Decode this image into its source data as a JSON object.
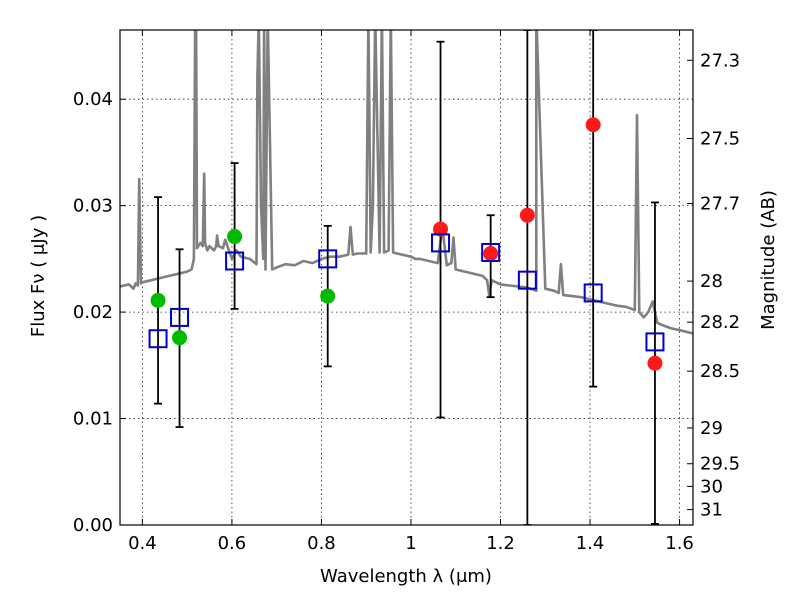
{
  "chart_data": {
    "type": "scatter",
    "title": "",
    "xlabel": "Wavelength  λ (μm)",
    "ylabel": "Flux  Fν  ( μJy )",
    "y2label": "Magnitude (AB)",
    "xlim": [
      0.35,
      1.63
    ],
    "ylim": [
      0.0,
      0.0465
    ],
    "grid": true,
    "legend": "none",
    "x_ticks": [
      {
        "value": 0.4,
        "label": "0.4"
      },
      {
        "value": 0.6,
        "label": "0.6"
      },
      {
        "value": 0.8,
        "label": "0.8"
      },
      {
        "value": 1.0,
        "label": "1"
      },
      {
        "value": 1.2,
        "label": "1.2"
      },
      {
        "value": 1.4,
        "label": "1.4"
      },
      {
        "value": 1.6,
        "label": "1.6"
      }
    ],
    "y_ticks": [
      {
        "value": 0.0,
        "label": "0.00"
      },
      {
        "value": 0.01,
        "label": "0.01"
      },
      {
        "value": 0.02,
        "label": "0.02"
      },
      {
        "value": 0.03,
        "label": "0.03"
      },
      {
        "value": 0.04,
        "label": "0.04"
      }
    ],
    "y2_ticks": [
      {
        "label": "27.3",
        "mag": 27.3
      },
      {
        "label": "27.5",
        "mag": 27.5
      },
      {
        "label": "27.7",
        "mag": 27.7
      },
      {
        "label": "28",
        "mag": 28.0
      },
      {
        "label": "28.2",
        "mag": 28.2
      },
      {
        "label": "28.5",
        "mag": 28.5
      },
      {
        "label": "29",
        "mag": 29.0
      },
      {
        "label": "29.5",
        "mag": 29.5
      },
      {
        "label": "30",
        "mag": 30.0
      },
      {
        "label": "31",
        "mag": 31.0
      }
    ],
    "series": [
      {
        "style": "model-spectrum",
        "color": "#808080",
        "x": [
          0.35,
          0.37,
          0.38,
          0.385,
          0.39,
          0.393,
          0.397,
          0.4,
          0.42,
          0.44,
          0.46,
          0.48,
          0.5,
          0.51,
          0.515,
          0.518,
          0.52,
          0.522,
          0.525,
          0.53,
          0.535,
          0.538,
          0.54,
          0.542,
          0.545,
          0.55,
          0.56,
          0.565,
          0.567,
          0.57,
          0.58,
          0.585,
          0.59,
          0.6,
          0.61,
          0.62,
          0.64,
          0.655,
          0.657,
          0.66,
          0.665,
          0.67,
          0.672,
          0.675,
          0.68,
          0.69,
          0.7,
          0.72,
          0.74,
          0.76,
          0.78,
          0.8,
          0.82,
          0.84,
          0.86,
          0.865,
          0.87,
          0.88,
          0.9,
          0.905,
          0.91,
          0.915,
          0.92,
          0.93,
          0.935,
          0.94,
          0.95,
          0.955,
          0.96,
          0.98,
          1.0,
          1.01,
          1.02,
          1.04,
          1.06,
          1.07,
          1.08,
          1.09,
          1.095,
          1.1,
          1.12,
          1.14,
          1.16,
          1.17,
          1.175,
          1.18,
          1.19,
          1.2,
          1.22,
          1.24,
          1.26,
          1.28,
          1.28,
          1.3,
          1.32,
          1.33,
          1.335,
          1.34,
          1.36,
          1.38,
          1.4,
          1.42,
          1.44,
          1.46,
          1.48,
          1.5,
          1.505,
          1.51,
          1.52,
          1.53,
          1.54,
          1.55,
          1.56,
          1.58,
          1.6,
          1.63
        ],
        "y": [
          0.0224,
          0.0226,
          0.0222,
          0.0227,
          0.0225,
          0.0325,
          0.0227,
          0.0228,
          0.023,
          0.0232,
          0.0234,
          0.0236,
          0.0238,
          0.024,
          0.025,
          0.048,
          0.048,
          0.026,
          0.0262,
          0.0265,
          0.0262,
          0.033,
          0.0265,
          0.0262,
          0.0258,
          0.0262,
          0.0258,
          0.0262,
          0.0272,
          0.0262,
          0.026,
          0.0268,
          0.0262,
          0.025,
          0.0258,
          0.0252,
          0.025,
          0.0245,
          0.042,
          0.048,
          0.03,
          0.025,
          0.048,
          0.024,
          0.048,
          0.024,
          0.0242,
          0.0245,
          0.0244,
          0.0248,
          0.0246,
          0.025,
          0.0252,
          0.0252,
          0.0254,
          0.028,
          0.0254,
          0.0255,
          0.0255,
          0.048,
          0.0256,
          0.03,
          0.048,
          0.0256,
          0.048,
          0.0256,
          0.0258,
          0.048,
          0.0256,
          0.0254,
          0.0252,
          0.025,
          0.025,
          0.0248,
          0.0246,
          0.028,
          0.0244,
          0.0246,
          0.027,
          0.024,
          0.0238,
          0.0236,
          0.0234,
          0.023,
          0.0215,
          0.023,
          0.0228,
          0.0226,
          0.0225,
          0.0224,
          0.0223,
          0.022,
          0.048,
          0.0222,
          0.022,
          0.0218,
          0.0245,
          0.0216,
          0.0215,
          0.0214,
          0.0212,
          0.021,
          0.0208,
          0.0206,
          0.0205,
          0.0202,
          0.0385,
          0.02,
          0.0195,
          0.02,
          0.021,
          0.019,
          0.0188,
          0.0185,
          0.0183,
          0.018
        ]
      },
      {
        "style": "filled-circle",
        "color": "#00bb00",
        "x": [
          0.435,
          0.483,
          0.606,
          0.814
        ],
        "y": [
          0.0211,
          0.0176,
          0.0271,
          0.0215
        ]
      },
      {
        "style": "filled-circle",
        "color": "#ff1a1a",
        "x": [
          1.066,
          1.178,
          1.26,
          1.407,
          1.545
        ],
        "y": [
          0.0278,
          0.0255,
          0.0291,
          0.0376,
          0.0152
        ]
      },
      {
        "style": "open-square",
        "color": "#0000cc",
        "x": [
          0.435,
          0.483,
          0.606,
          0.814,
          1.066,
          1.178,
          1.26,
          1.407,
          1.545
        ],
        "y": [
          0.0175,
          0.0195,
          0.0248,
          0.025,
          0.0265,
          0.0256,
          0.023,
          0.0218,
          0.0172
        ]
      }
    ],
    "error_bars": [
      {
        "x": 0.435,
        "low": 0.0114,
        "high": 0.0308
      },
      {
        "x": 0.483,
        "low": 0.0092,
        "high": 0.0259
      },
      {
        "x": 0.606,
        "low": 0.0203,
        "high": 0.034
      },
      {
        "x": 0.814,
        "low": 0.0149,
        "high": 0.0281
      },
      {
        "x": 1.066,
        "low": 0.0101,
        "high": 0.0454
      },
      {
        "x": 1.178,
        "low": 0.0214,
        "high": 0.0291
      },
      {
        "x": 1.26,
        "low": 0.0,
        "high": 0.0465
      },
      {
        "x": 1.407,
        "low": 0.013,
        "high": 0.0465
      },
      {
        "x": 1.545,
        "low": 0.0001,
        "high": 0.0303
      }
    ]
  }
}
